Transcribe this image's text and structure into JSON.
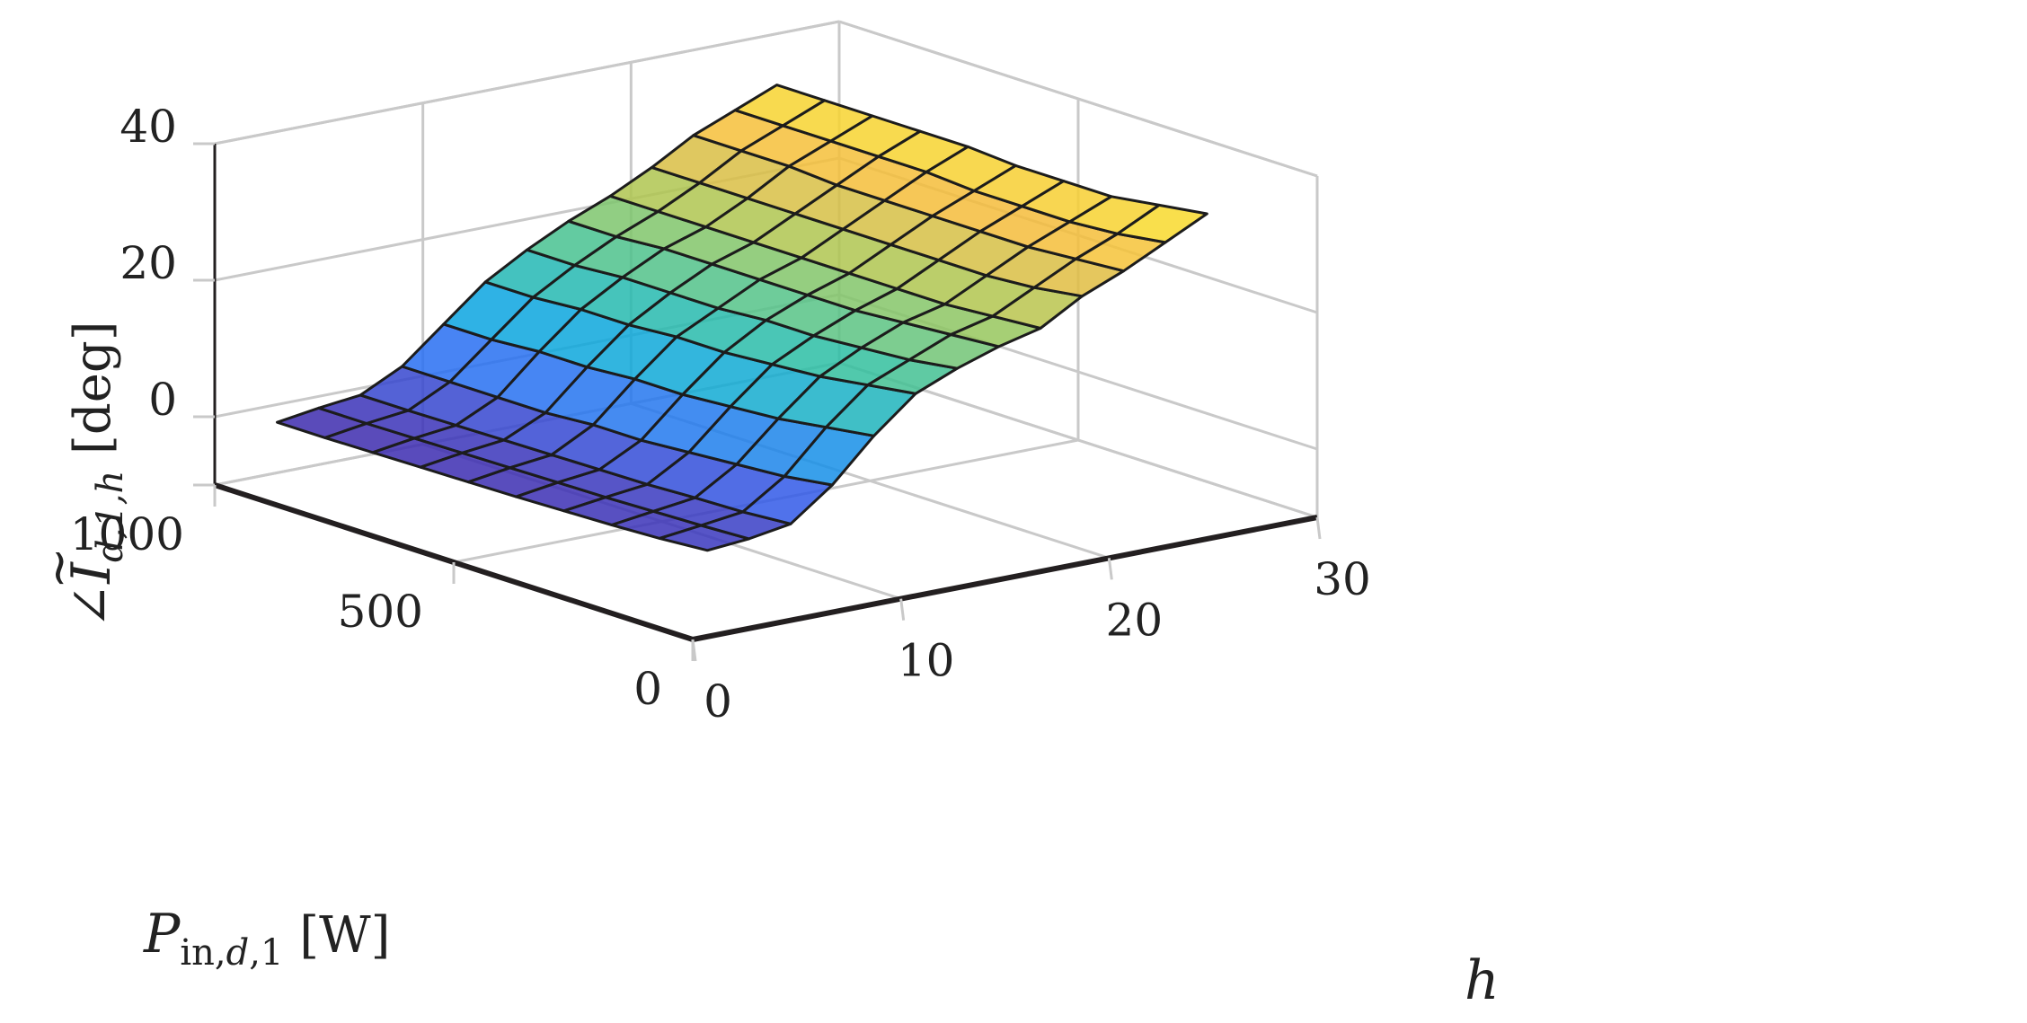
{
  "chart_data": {
    "type": "surface",
    "title": "",
    "xlabel": "h",
    "ylabel": "P_in,d,1 [W]",
    "ylabel_parts": {
      "main": "P",
      "sub": "in,",
      "sub_italic": "d",
      "sub_tail": ",1",
      "unit": " [W]"
    },
    "zlabel": "∠Ĩ_{d,1,h} [deg]",
    "zlabel_parts": {
      "angle": "∠",
      "main": "I",
      "tilde": "~",
      "sub": "d,1,h",
      "unit": "  [deg]"
    },
    "x_ticks": [
      "0",
      "10",
      "20",
      "30"
    ],
    "y_ticks": [
      "0",
      "500",
      "1000"
    ],
    "z_ticks": [
      "0",
      "20",
      "40"
    ],
    "xlim": [
      0,
      30
    ],
    "ylim": [
      0,
      1000
    ],
    "zlim": [
      -10,
      40
    ],
    "grid": true,
    "colormap": "parula",
    "colormap_stops": [
      "#3e26a8",
      "#2e64f5",
      "#0aa5e0",
      "#2fc0a0",
      "#a6c853",
      "#f5b93c",
      "#f9e926"
    ],
    "h": [
      3,
      5,
      7,
      9,
      11,
      13,
      15,
      17,
      19,
      21,
      23,
      25,
      27
    ],
    "P_in": [
      100,
      200,
      300,
      400,
      500,
      600,
      700,
      800,
      900,
      1000
    ],
    "phase_deg": [
      [
        -1.0,
        -0.5,
        0.5,
        5.0,
        11.0,
        16.0,
        18.5,
        20.5,
        22.0,
        25.5,
        28.0,
        31.0,
        34.0
      ],
      [
        -1.5,
        -0.8,
        0.0,
        4.0,
        10.0,
        15.0,
        17.5,
        20.0,
        21.5,
        24.5,
        27.5,
        30.0,
        33.0
      ],
      [
        -1.8,
        -1.0,
        -0.2,
        3.5,
        9.0,
        14.0,
        17.0,
        19.5,
        21.0,
        24.0,
        27.0,
        29.5,
        32.0
      ],
      [
        -2.0,
        -1.2,
        -0.5,
        3.0,
        8.5,
        13.5,
        16.5,
        19.0,
        21.0,
        24.0,
        27.0,
        29.5,
        32.0
      ],
      [
        -2.2,
        -1.3,
        -0.6,
        2.5,
        8.0,
        13.0,
        16.5,
        19.0,
        21.0,
        24.0,
        27.0,
        29.5,
        32.0
      ],
      [
        -2.3,
        -1.4,
        -0.7,
        2.5,
        8.0,
        13.0,
        16.0,
        19.0,
        21.0,
        24.0,
        27.0,
        30.0,
        32.5
      ],
      [
        -2.4,
        -1.5,
        -0.8,
        2.0,
        7.5,
        12.5,
        16.0,
        19.0,
        21.0,
        24.0,
        27.0,
        30.0,
        32.5
      ],
      [
        -2.5,
        -1.6,
        -0.9,
        2.0,
        7.5,
        12.5,
        16.0,
        19.0,
        21.0,
        24.0,
        27.5,
        30.0,
        32.5
      ],
      [
        -2.6,
        -1.7,
        -1.0,
        2.0,
        7.0,
        12.0,
        15.5,
        18.5,
        21.0,
        24.0,
        27.5,
        30.0,
        32.5
      ],
      [
        -2.6,
        -1.7,
        -1.0,
        2.0,
        7.0,
        12.0,
        15.5,
        18.5,
        21.0,
        24.0,
        27.5,
        30.0,
        32.5
      ]
    ]
  }
}
